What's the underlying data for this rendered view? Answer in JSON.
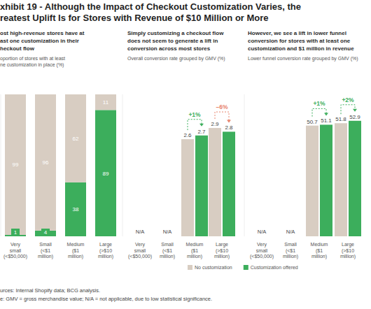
{
  "title": "xhibit 19 - Although the Impact of Checkout Customization Varies, the\nreatest Uplift Is for Stores with Revenue of $10 Million or More",
  "chart_data": [
    {
      "type": "bar",
      "stacked": true,
      "subtitle": "ost high-revenue stores have at\nast one customization in their\nheckout flow",
      "ylabel": "oportion of stores with at least\nne customization in place (%)",
      "categories": [
        "Very small (<$50,000)",
        "Small (<$1 million)",
        "Medium ($1 million)",
        "Large (>$10 million)"
      ],
      "series": [
        {
          "color": "#3cae5c",
          "values": [
            1,
            4,
            38,
            89
          ]
        },
        {
          "color": "#d8cdc2",
          "values": [
            99,
            96,
            62,
            11
          ]
        }
      ],
      "ylim": [
        0,
        100
      ],
      "tick_labels": "x",
      "data_labels": true
    },
    {
      "type": "bar",
      "subtitle": "Simply customizing a checkout flow\ndoes not seem to generate a lift in\nconversion across most stores",
      "ylabel": "Overall conversion rate grouped by GMV (%)",
      "categories": [
        "Very small (<$50,000)",
        "Small (<$1 million)",
        "Medium ($1 million)",
        "Large (>$10 million)"
      ],
      "series": [
        {
          "name": "No customization",
          "color": "#d8cdc2",
          "values": [
            null,
            null,
            2.6,
            2.9
          ]
        },
        {
          "name": "Customization offered",
          "color": "#3cae5c",
          "values": [
            null,
            null,
            2.7,
            2.8
          ]
        }
      ],
      "ylim": [
        0,
        3.8
      ],
      "tick_labels": "x",
      "data_labels": true,
      "legend": "bottom",
      "annotations": [
        {
          "text": "N/A",
          "category": 0
        },
        {
          "text": "N/A",
          "category": 1
        },
        {
          "text": "+1%",
          "category": 2,
          "color": "#3cae5c"
        },
        {
          "text": "–6%",
          "category": 3,
          "color": "#e8836b"
        }
      ]
    },
    {
      "type": "bar",
      "subtitle": "However, we see a lift in lower funnel\nconversion for stores with at least one\ncustomization and $1 million in revenue",
      "ylabel": "Lower funnel conversion rate grouped by GMV (%)",
      "categories": [
        "Very small (<$50,000)",
        "Small (<$1 million)",
        "Medium ($1 million)",
        "Large (>$10 million)"
      ],
      "series": [
        {
          "color": "#d8cdc2",
          "values": [
            null,
            null,
            50.7,
            51.8
          ]
        },
        {
          "color": "#3cae5c",
          "values": [
            null,
            null,
            51.1,
            52.9
          ]
        }
      ],
      "ylim": [
        0,
        65
      ],
      "tick_labels": "x",
      "data_labels": true,
      "annotations": [
        {
          "text": "N/A",
          "category": 0
        },
        {
          "text": "N/A",
          "category": 1
        },
        {
          "text": "+1%",
          "category": 2,
          "color": "#3cae5c"
        },
        {
          "text": "+2%",
          "category": 3,
          "color": "#3cae5c"
        }
      ]
    }
  ],
  "footnotes": [
    "urces: Internal Shopify data; BCG analysis.",
    "e: GMV = gross merchandise value; N/A = not applicable, due to low statistical significance."
  ]
}
